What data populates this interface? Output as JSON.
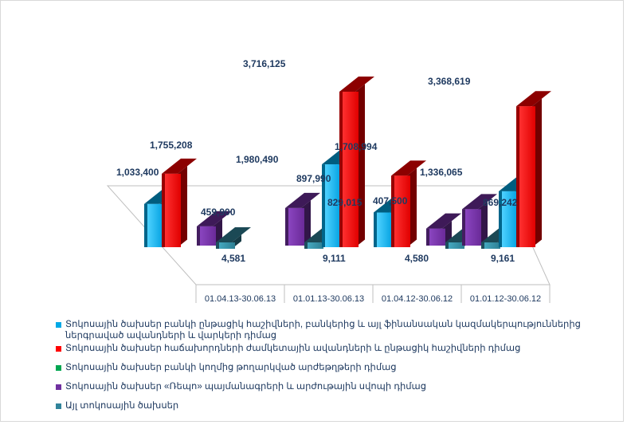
{
  "colors": {
    "series1": "#00a9e6",
    "series2": "#ff0000",
    "series3": "#00a651",
    "series4": "#7030a0",
    "series5": "#31849b"
  },
  "chart_data": {
    "type": "bar",
    "categories": [
      "01.04.13-30.06.13",
      "01.01.13-30.06.13",
      "01.04.12-30.06.12",
      "01.01.12-30.06.12"
    ],
    "series": [
      {
        "name": "Տոկոսային ծախսեր բանկի ընթացիկ հաշիվների, բանկերից և այլ ֆինանսական կազմակերպություններից ներգրաված ավանդների և վարկերի դիմաց",
        "values": [
          1033400,
          1980490,
          829015,
          1336065
        ],
        "labels": [
          "1,033,400",
          "1,980,490",
          "829,015",
          "1,336,065"
        ]
      },
      {
        "name": "Տոկոսային ծախսեր հաճախորդների ժամկետային ավանդների և ընթացիկ հաշիվների դիմաց",
        "values": [
          1755208,
          3716125,
          1708994,
          3368619
        ],
        "labels": [
          "1,755,208",
          "3,716,125",
          "1,708,994",
          "3,368,619"
        ]
      },
      {
        "name": "Տոկոսային ծախսեր բանկի կողմից թողարկված արժեթղթերի դիմաց",
        "values": [
          0,
          0,
          0,
          0
        ],
        "labels": [
          "",
          "",
          "",
          ""
        ]
      },
      {
        "name": "Տոկոսային ծախսեր «Ռեպո» պայմանագրերի և արժութային սվոպի դիմաց",
        "values": [
          459900,
          897990,
          407500,
          869242
        ],
        "labels": [
          "459,900",
          "897,990",
          "407,500",
          "869,242"
        ]
      },
      {
        "name": "Այլ տոկոսային ծախսեր",
        "values": [
          4581,
          9111,
          4580,
          9161
        ],
        "labels": [
          "4,581",
          "9,111",
          "4,580",
          "9,161"
        ]
      }
    ],
    "title": "",
    "xlabel": "",
    "ylabel": "",
    "ylim": [
      0,
      4000000
    ],
    "grid": false,
    "legend": "bottom"
  }
}
